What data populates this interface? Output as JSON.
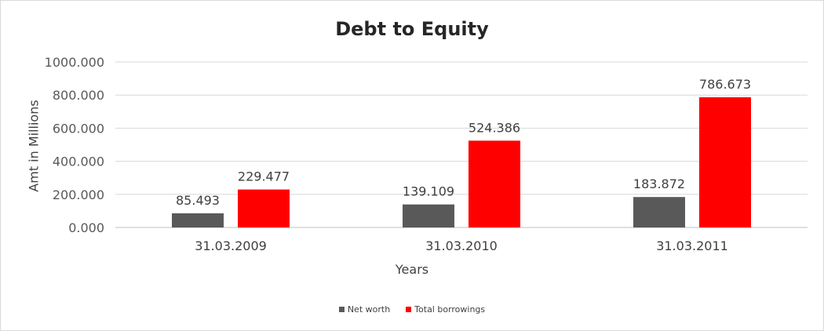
{
  "chart_data": {
    "type": "bar",
    "title": "Debt to Equity",
    "xlabel": "Years",
    "ylabel": "Amt in Millions",
    "categories": [
      "31.03.2009",
      "31.03.2010",
      "31.03.2011"
    ],
    "series": [
      {
        "name": "Net worth",
        "values": [
          85.493,
          139.109,
          183.872
        ],
        "color": "#595959"
      },
      {
        "name": "Total borrowings",
        "values": [
          229.477,
          524.386,
          786.673
        ],
        "color": "#ff0000"
      }
    ],
    "ylim": [
      0,
      1000
    ],
    "yticks": [
      "0.000",
      "200.000",
      "400.000",
      "600.000",
      "800.000",
      "1000.000"
    ],
    "data_labels": [
      [
        "85.493",
        "139.109",
        "183.872"
      ],
      [
        "229.477",
        "524.386",
        "786.673"
      ]
    ],
    "grid": true,
    "legend_position": "bottom"
  }
}
